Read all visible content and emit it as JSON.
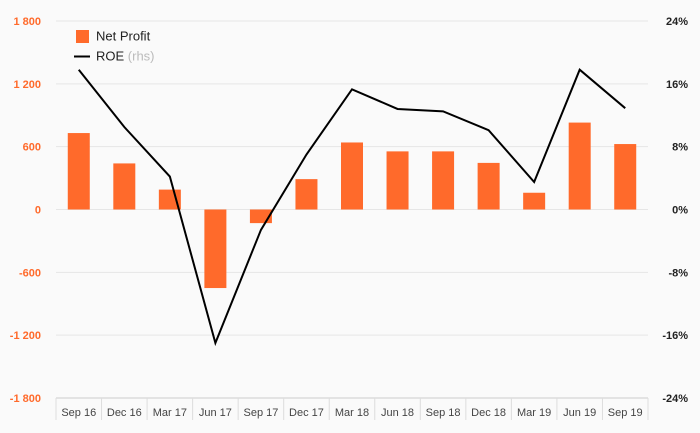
{
  "chart_data": {
    "type": "bar",
    "categories": [
      "Sep 16",
      "Dec 16",
      "Mar 17",
      "Jun 17",
      "Sep 17",
      "Dec 17",
      "Mar 18",
      "Jun 18",
      "Sep 18",
      "Dec 18",
      "Mar 19",
      "Jun 19",
      "Sep 19"
    ],
    "series": [
      {
        "name": "Net Profit",
        "type": "bar",
        "axis": "left",
        "color": "#ff6a2b",
        "values": [
          730,
          440,
          190,
          -750,
          -130,
          290,
          640,
          555,
          555,
          445,
          160,
          830,
          625
        ]
      },
      {
        "name": "ROE",
        "name_suffix": "(rhs)",
        "type": "line",
        "axis": "right",
        "color": "#000000",
        "values": [
          17.8,
          10.5,
          4.2,
          -17.0,
          -2.6,
          7.0,
          15.3,
          12.8,
          12.5,
          10.1,
          3.5,
          17.8,
          12.9
        ]
      }
    ],
    "y_left": {
      "ylim": [
        -1800,
        1800
      ],
      "ticks": [
        1800,
        1200,
        600,
        0,
        -600,
        -1200,
        -1800
      ],
      "tick_labels": [
        "1 800",
        "1 200",
        "600",
        "0",
        "-600",
        "-1 200",
        "-1 800"
      ],
      "color": "#ff6a2b"
    },
    "y_right": {
      "ylim": [
        -24,
        24
      ],
      "ticks": [
        24,
        16,
        8,
        0,
        -8,
        -16,
        -24
      ],
      "tick_labels": [
        "24%",
        "16%",
        "8%",
        "0%",
        "-8%",
        "-16%",
        "-24%"
      ]
    },
    "legend": {
      "position": "top-left",
      "items": [
        {
          "label": "Net Profit",
          "sub": "",
          "marker": "square",
          "color": "#ff6a2b"
        },
        {
          "label": "ROE",
          "sub": "(rhs)",
          "marker": "line",
          "color": "#000000"
        }
      ]
    },
    "grid": true,
    "background": "#fafafa"
  }
}
